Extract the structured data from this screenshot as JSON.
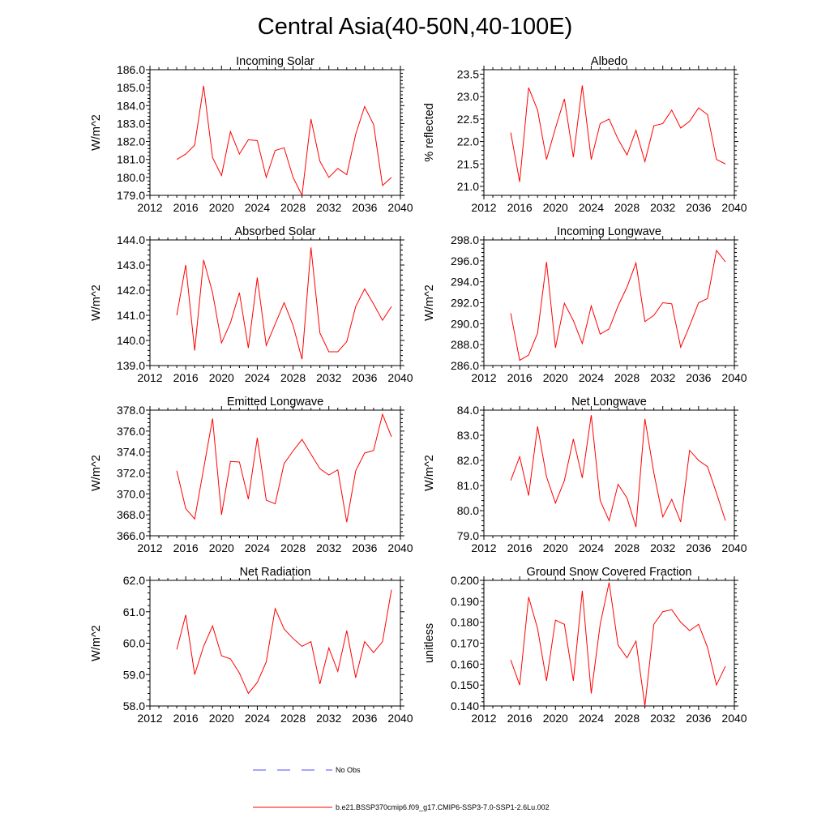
{
  "title": "Central Asia(40-50N,40-100E)",
  "colors": {
    "model": "#ff0000",
    "obs": "#4b4bff",
    "axis": "#000000"
  },
  "legend": {
    "obs_label": "No Obs",
    "model_label": "b.e21.BSSP370cmip6.f09_g17.CMIP6-SSP3-7.0-SSP1-2.6Lu.002"
  },
  "chart_data": [
    {
      "type": "line",
      "title": "Incoming Solar",
      "ylabel": "W/m^2",
      "xlim": [
        2012,
        2040
      ],
      "xticks": [
        2012,
        2016,
        2020,
        2024,
        2028,
        2032,
        2036,
        2040
      ],
      "ylim": [
        179.0,
        186.0
      ],
      "yticks": [
        "179.0",
        "180.0",
        "181.0",
        "182.0",
        "183.0",
        "184.0",
        "185.0",
        "186.0"
      ],
      "x": [
        2015,
        2016,
        2017,
        2018,
        2019,
        2020,
        2021,
        2022,
        2023,
        2024,
        2025,
        2026,
        2027,
        2028,
        2029,
        2030,
        2031,
        2032,
        2033,
        2034,
        2035,
        2036,
        2037,
        2038,
        2039
      ],
      "values": [
        181.0,
        181.3,
        181.8,
        185.1,
        181.1,
        180.1,
        182.55,
        181.3,
        182.1,
        182.05,
        180.0,
        181.5,
        181.65,
        180.0,
        179.0,
        183.25,
        180.9,
        180.0,
        180.5,
        180.15,
        182.4,
        183.95,
        182.95,
        179.55,
        180.0
      ]
    },
    {
      "type": "line",
      "title": "Albedo",
      "ylabel": "% reflected",
      "xlim": [
        2012,
        2040
      ],
      "xticks": [
        2012,
        2016,
        2020,
        2024,
        2028,
        2032,
        2036,
        2040
      ],
      "ylim": [
        20.8,
        23.6
      ],
      "yticks": [
        "21.0",
        "21.5",
        "22.0",
        "22.5",
        "23.0",
        "23.5"
      ],
      "x": [
        2015,
        2016,
        2017,
        2018,
        2019,
        2020,
        2021,
        2022,
        2023,
        2024,
        2025,
        2026,
        2027,
        2028,
        2029,
        2030,
        2031,
        2032,
        2033,
        2034,
        2035,
        2036,
        2037,
        2038,
        2039
      ],
      "values": [
        22.2,
        21.1,
        23.2,
        22.7,
        21.6,
        22.3,
        22.95,
        21.65,
        23.25,
        21.6,
        22.4,
        22.5,
        22.05,
        21.7,
        22.25,
        21.55,
        22.35,
        22.4,
        22.7,
        22.3,
        22.45,
        22.75,
        22.6,
        21.6,
        21.5
      ]
    },
    {
      "type": "line",
      "title": "Absorbed Solar",
      "ylabel": "W/m^2",
      "xlim": [
        2012,
        2040
      ],
      "xticks": [
        2012,
        2016,
        2020,
        2024,
        2028,
        2032,
        2036,
        2040
      ],
      "ylim": [
        139.0,
        144.0
      ],
      "yticks": [
        "139.0",
        "140.0",
        "141.0",
        "142.0",
        "143.0",
        "144.0"
      ],
      "x": [
        2015,
        2016,
        2017,
        2018,
        2019,
        2020,
        2021,
        2022,
        2023,
        2024,
        2025,
        2026,
        2027,
        2028,
        2029,
        2030,
        2031,
        2032,
        2033,
        2034,
        2035,
        2036,
        2037,
        2038,
        2039
      ],
      "values": [
        141.0,
        143.0,
        139.6,
        143.2,
        141.9,
        139.9,
        140.7,
        141.9,
        139.7,
        142.5,
        139.8,
        140.65,
        141.5,
        140.6,
        139.25,
        143.7,
        140.3,
        139.55,
        139.55,
        139.95,
        141.35,
        142.05,
        141.45,
        140.8,
        141.35
      ]
    },
    {
      "type": "line",
      "title": "Incoming Longwave",
      "ylabel": "W/m^2",
      "xlim": [
        2012,
        2040
      ],
      "xticks": [
        2012,
        2016,
        2020,
        2024,
        2028,
        2032,
        2036,
        2040
      ],
      "ylim": [
        286.0,
        298.0
      ],
      "yticks": [
        "286.0",
        "288.0",
        "290.0",
        "292.0",
        "294.0",
        "296.0",
        "298.0"
      ],
      "x": [
        2015,
        2016,
        2017,
        2018,
        2019,
        2020,
        2021,
        2022,
        2023,
        2024,
        2025,
        2026,
        2027,
        2028,
        2029,
        2030,
        2031,
        2032,
        2033,
        2034,
        2035,
        2036,
        2037,
        2038,
        2039
      ],
      "values": [
        291.0,
        286.5,
        287.0,
        289.1,
        295.9,
        287.7,
        291.95,
        290.3,
        288.1,
        291.7,
        289.0,
        289.5,
        291.7,
        293.5,
        295.8,
        290.2,
        290.8,
        292.0,
        291.9,
        287.75,
        289.8,
        292.0,
        292.4,
        297.0,
        295.9
      ]
    },
    {
      "type": "line",
      "title": "Emitted Longwave",
      "ylabel": "W/m^2",
      "xlim": [
        2012,
        2040
      ],
      "xticks": [
        2012,
        2016,
        2020,
        2024,
        2028,
        2032,
        2036,
        2040
      ],
      "ylim": [
        366.0,
        378.0
      ],
      "yticks": [
        "366.0",
        "368.0",
        "370.0",
        "372.0",
        "374.0",
        "376.0",
        "378.0"
      ],
      "x": [
        2015,
        2016,
        2017,
        2018,
        2019,
        2020,
        2021,
        2022,
        2023,
        2024,
        2025,
        2026,
        2027,
        2028,
        2029,
        2030,
        2031,
        2032,
        2033,
        2034,
        2035,
        2036,
        2037,
        2038,
        2039
      ],
      "values": [
        372.2,
        368.6,
        367.6,
        372.4,
        377.2,
        368.0,
        373.1,
        373.05,
        369.5,
        375.35,
        369.4,
        369.05,
        372.9,
        374.1,
        375.2,
        373.8,
        372.4,
        371.8,
        372.3,
        367.3,
        372.2,
        373.9,
        374.15,
        377.6,
        375.45
      ]
    },
    {
      "type": "line",
      "title": "Net Longwave",
      "ylabel": "W/m^2",
      "xlim": [
        2012,
        2040
      ],
      "xticks": [
        2012,
        2016,
        2020,
        2024,
        2028,
        2032,
        2036,
        2040
      ],
      "ylim": [
        79.0,
        84.0
      ],
      "yticks": [
        "79.0",
        "80.0",
        "81.0",
        "82.0",
        "83.0",
        "84.0"
      ],
      "x": [
        2015,
        2016,
        2017,
        2018,
        2019,
        2020,
        2021,
        2022,
        2023,
        2024,
        2025,
        2026,
        2027,
        2028,
        2029,
        2030,
        2031,
        2032,
        2033,
        2034,
        2035,
        2036,
        2037,
        2038,
        2039
      ],
      "values": [
        81.2,
        82.15,
        80.6,
        83.35,
        81.35,
        80.3,
        81.2,
        82.85,
        81.3,
        83.8,
        80.4,
        79.6,
        81.05,
        80.5,
        79.35,
        83.65,
        81.5,
        79.75,
        80.45,
        79.55,
        82.4,
        82.0,
        81.75,
        80.7,
        79.6
      ]
    },
    {
      "type": "line",
      "title": "Net Radiation",
      "ylabel": "W/m^2",
      "xlim": [
        2012,
        2040
      ],
      "xticks": [
        2012,
        2016,
        2020,
        2024,
        2028,
        2032,
        2036,
        2040
      ],
      "ylim": [
        58.0,
        62.0
      ],
      "yticks": [
        "58.0",
        "59.0",
        "60.0",
        "61.0",
        "62.0"
      ],
      "x": [
        2015,
        2016,
        2017,
        2018,
        2019,
        2020,
        2021,
        2022,
        2023,
        2024,
        2025,
        2026,
        2027,
        2028,
        2029,
        2030,
        2031,
        2032,
        2033,
        2034,
        2035,
        2036,
        2037,
        2038,
        2039
      ],
      "values": [
        59.8,
        60.9,
        59.0,
        59.9,
        60.55,
        59.6,
        59.5,
        59.05,
        58.4,
        58.75,
        59.4,
        61.1,
        60.45,
        60.15,
        59.9,
        60.05,
        58.7,
        59.85,
        59.1,
        60.4,
        58.9,
        60.05,
        59.7,
        60.05,
        61.7
      ]
    },
    {
      "type": "line",
      "title": "Ground Snow Covered Fraction",
      "ylabel": "unitless",
      "xlim": [
        2012,
        2040
      ],
      "xticks": [
        2012,
        2016,
        2020,
        2024,
        2028,
        2032,
        2036,
        2040
      ],
      "ylim": [
        0.14,
        0.2
      ],
      "yticks": [
        "0.140",
        "0.150",
        "0.160",
        "0.170",
        "0.180",
        "0.190",
        "0.200"
      ],
      "x": [
        2015,
        2016,
        2017,
        2018,
        2019,
        2020,
        2021,
        2022,
        2023,
        2024,
        2025,
        2026,
        2027,
        2028,
        2029,
        2030,
        2031,
        2032,
        2033,
        2034,
        2035,
        2036,
        2037,
        2038,
        2039
      ],
      "values": [
        0.162,
        0.15,
        0.192,
        0.177,
        0.152,
        0.181,
        0.179,
        0.152,
        0.195,
        0.146,
        0.179,
        0.199,
        0.169,
        0.163,
        0.171,
        0.14,
        0.179,
        0.185,
        0.186,
        0.18,
        0.176,
        0.179,
        0.168,
        0.15,
        0.159
      ]
    }
  ]
}
